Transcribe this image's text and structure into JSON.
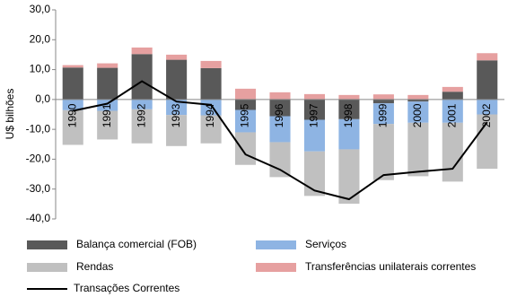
{
  "chart_data": {
    "type": "bar",
    "stacked": true,
    "y_label": "U$ bilhões",
    "categories": [
      "1990",
      "1991",
      "1992",
      "1993",
      "1994",
      "1995",
      "1996",
      "1997",
      "1998",
      "1999",
      "2000",
      "2001",
      "2002"
    ],
    "series": [
      {
        "name": "Balança comercial (FOB)",
        "color": "#595959",
        "values": [
          10.7,
          10.6,
          15.2,
          13.3,
          10.5,
          -3.5,
          -5.6,
          -6.8,
          -6.6,
          -1.3,
          -0.7,
          2.6,
          13.1
        ]
      },
      {
        "name": "Serviços",
        "color": "#8eb4e3",
        "values": [
          -3.6,
          -3.8,
          -3.3,
          -5.2,
          -5.3,
          -7.5,
          -8.7,
          -10.6,
          -10.1,
          -6.9,
          -7.1,
          -7.8,
          -5.0
        ]
      },
      {
        "name": "Rendas",
        "color": "#c0c0c0",
        "values": [
          -11.6,
          -9.6,
          -11.4,
          -10.4,
          -9.4,
          -10.9,
          -11.7,
          -14.9,
          -18.2,
          -18.8,
          -17.9,
          -19.7,
          -18.2
        ]
      },
      {
        "name": "Transferências unilaterais  correntes",
        "color": "#e6a0a0",
        "values": [
          0.8,
          1.5,
          2.2,
          1.7,
          2.4,
          3.6,
          2.4,
          1.8,
          1.5,
          1.7,
          1.5,
          1.6,
          2.4
        ]
      },
      {
        "name": "Transações Correntes",
        "color": "#000000",
        "type": "line",
        "values": [
          -3.8,
          -1.4,
          6.1,
          -0.7,
          -1.8,
          -18.4,
          -23.5,
          -30.5,
          -33.4,
          -25.3,
          -24.2,
          -23.2,
          -7.6
        ]
      }
    ],
    "ylim": [
      -40,
      30
    ],
    "yticks": [
      {
        "value": -40,
        "label": "-40,0"
      },
      {
        "value": -30,
        "label": "-30,0"
      },
      {
        "value": -20,
        "label": "-20,0"
      },
      {
        "value": -10,
        "label": "-10,0"
      },
      {
        "value": 0,
        "label": "0,0"
      },
      {
        "value": 10,
        "label": "10,0"
      },
      {
        "value": 20,
        "label": "20,0"
      },
      {
        "value": 30,
        "label": "30,0"
      }
    ],
    "grid": false
  }
}
